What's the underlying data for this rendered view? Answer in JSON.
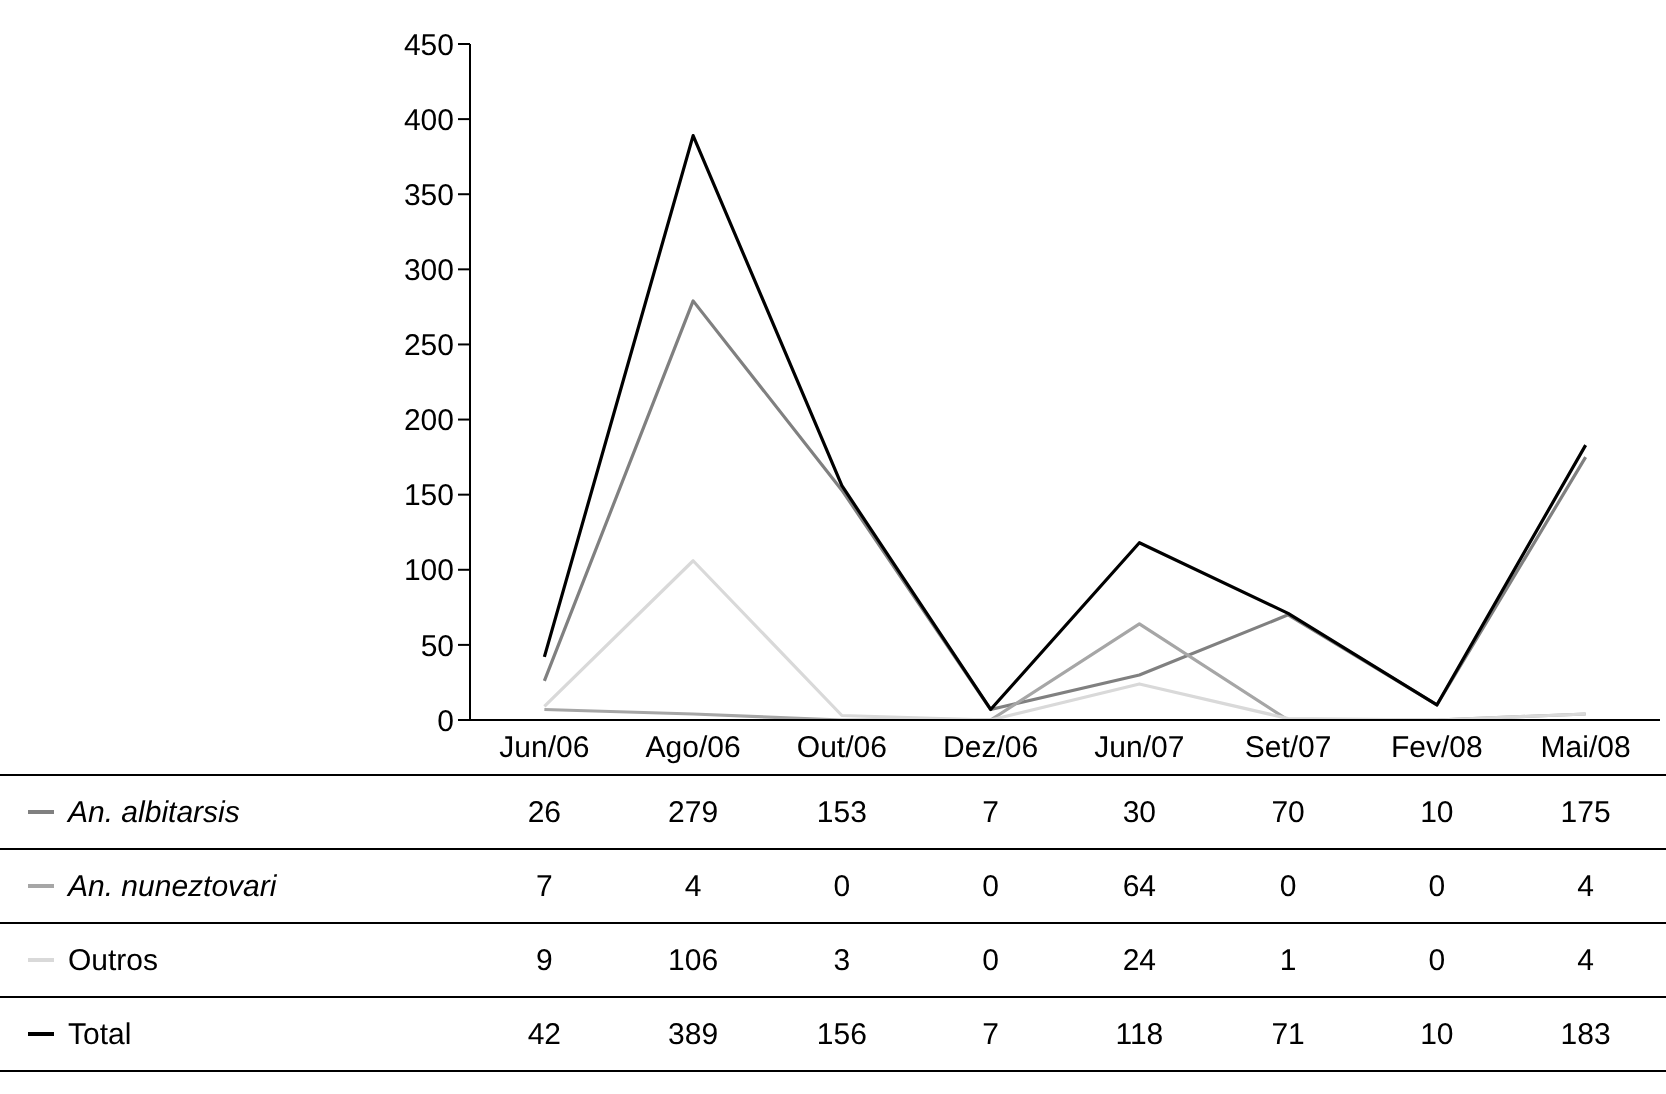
{
  "chart_data": {
    "type": "line",
    "categories": [
      "Jun/06",
      "Ago/06",
      "Out/06",
      "Dez/06",
      "Jun/07",
      "Set/07",
      "Fev/08",
      "Mai/08"
    ],
    "series": [
      {
        "name": "An. albitarsis",
        "color": "#808080",
        "values": [
          26,
          279,
          153,
          7,
          30,
          70,
          10,
          175
        ]
      },
      {
        "name": "An. nuneztovari",
        "color": "#a6a6a6",
        "values": [
          7,
          4,
          0,
          0,
          64,
          0,
          0,
          4
        ]
      },
      {
        "name": "Outros",
        "color": "#d9d9d9",
        "values": [
          9,
          106,
          3,
          0,
          24,
          1,
          0,
          4
        ]
      },
      {
        "name": "Total",
        "color": "#000000",
        "values": [
          42,
          389,
          156,
          7,
          118,
          71,
          10,
          183
        ]
      }
    ],
    "ylim": [
      0,
      450
    ],
    "yticks": [
      0,
      50,
      100,
      150,
      200,
      250,
      300,
      350,
      400,
      450
    ],
    "data_labels": true,
    "legend": "bottom",
    "marker": "none",
    "line_style": "solid"
  }
}
